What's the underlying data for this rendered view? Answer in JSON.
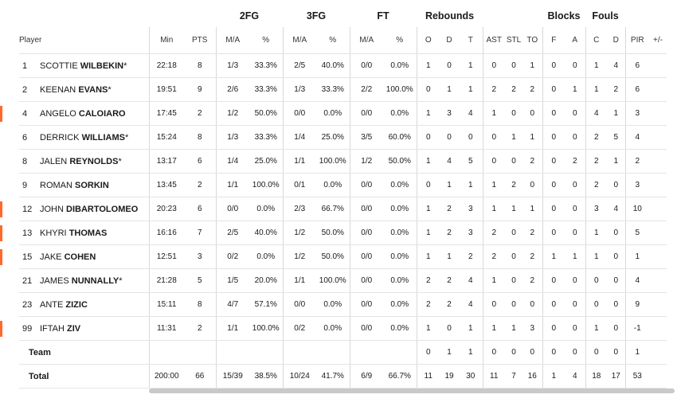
{
  "groups": {
    "fg2": "2FG",
    "fg3": "3FG",
    "ft": "FT",
    "rebounds": "Rebounds",
    "blocks": "Blocks",
    "fouls": "Fouls"
  },
  "columns": {
    "player": "Player",
    "min": "Min",
    "pts": "PTS",
    "fg2_ma": "M/A",
    "fg2_pct": "%",
    "fg3_ma": "M/A",
    "fg3_pct": "%",
    "ft_ma": "M/A",
    "ft_pct": "%",
    "reb_o": "O",
    "reb_d": "D",
    "reb_t": "T",
    "ast": "AST",
    "stl": "STL",
    "to": "TO",
    "blk_f": "F",
    "blk_a": "A",
    "foul_c": "C",
    "foul_d": "D",
    "pir": "PIR",
    "pm": "+/-"
  },
  "accent_color": "#ff6a2b",
  "players": [
    {
      "num": "1",
      "first": "SCOTTIE",
      "last": "WILBEKIN",
      "starter": "*",
      "highlight": false,
      "min": "22:18",
      "pts": "8",
      "fg2_ma": "1/3",
      "fg2_pct": "33.3%",
      "fg3_ma": "2/5",
      "fg3_pct": "40.0%",
      "ft_ma": "0/0",
      "ft_pct": "0.0%",
      "o": "1",
      "d": "0",
      "t": "1",
      "ast": "0",
      "stl": "0",
      "to": "1",
      "bf": "0",
      "ba": "0",
      "fc": "1",
      "fd": "4",
      "pir": "6",
      "pm": ""
    },
    {
      "num": "2",
      "first": "KEENAN",
      "last": "EVANS",
      "starter": "*",
      "highlight": false,
      "min": "19:51",
      "pts": "9",
      "fg2_ma": "2/6",
      "fg2_pct": "33.3%",
      "fg3_ma": "1/3",
      "fg3_pct": "33.3%",
      "ft_ma": "2/2",
      "ft_pct": "100.0%",
      "o": "0",
      "d": "1",
      "t": "1",
      "ast": "2",
      "stl": "2",
      "to": "2",
      "bf": "0",
      "ba": "1",
      "fc": "1",
      "fd": "2",
      "pir": "6",
      "pm": ""
    },
    {
      "num": "4",
      "first": "ANGELO",
      "last": "CALOIARO",
      "starter": "",
      "highlight": true,
      "min": "17:45",
      "pts": "2",
      "fg2_ma": "1/2",
      "fg2_pct": "50.0%",
      "fg3_ma": "0/0",
      "fg3_pct": "0.0%",
      "ft_ma": "0/0",
      "ft_pct": "0.0%",
      "o": "1",
      "d": "3",
      "t": "4",
      "ast": "1",
      "stl": "0",
      "to": "0",
      "bf": "0",
      "ba": "0",
      "fc": "4",
      "fd": "1",
      "pir": "3",
      "pm": ""
    },
    {
      "num": "6",
      "first": "DERRICK",
      "last": "WILLIAMS",
      "starter": "*",
      "highlight": false,
      "min": "15:24",
      "pts": "8",
      "fg2_ma": "1/3",
      "fg2_pct": "33.3%",
      "fg3_ma": "1/4",
      "fg3_pct": "25.0%",
      "ft_ma": "3/5",
      "ft_pct": "60.0%",
      "o": "0",
      "d": "0",
      "t": "0",
      "ast": "0",
      "stl": "1",
      "to": "1",
      "bf": "0",
      "ba": "0",
      "fc": "2",
      "fd": "5",
      "pir": "4",
      "pm": ""
    },
    {
      "num": "8",
      "first": "JALEN",
      "last": "REYNOLDS",
      "starter": "*",
      "highlight": false,
      "min": "13:17",
      "pts": "6",
      "fg2_ma": "1/4",
      "fg2_pct": "25.0%",
      "fg3_ma": "1/1",
      "fg3_pct": "100.0%",
      "ft_ma": "1/2",
      "ft_pct": "50.0%",
      "o": "1",
      "d": "4",
      "t": "5",
      "ast": "0",
      "stl": "0",
      "to": "2",
      "bf": "0",
      "ba": "2",
      "fc": "2",
      "fd": "1",
      "pir": "2",
      "pm": ""
    },
    {
      "num": "9",
      "first": "ROMAN",
      "last": "SORKIN",
      "starter": "",
      "highlight": false,
      "min": "13:45",
      "pts": "2",
      "fg2_ma": "1/1",
      "fg2_pct": "100.0%",
      "fg3_ma": "0/1",
      "fg3_pct": "0.0%",
      "ft_ma": "0/0",
      "ft_pct": "0.0%",
      "o": "0",
      "d": "1",
      "t": "1",
      "ast": "1",
      "stl": "2",
      "to": "0",
      "bf": "0",
      "ba": "0",
      "fc": "2",
      "fd": "0",
      "pir": "3",
      "pm": ""
    },
    {
      "num": "12",
      "first": "JOHN",
      "last": "DIBARTOLOMEO",
      "starter": "",
      "highlight": true,
      "min": "20:23",
      "pts": "6",
      "fg2_ma": "0/0",
      "fg2_pct": "0.0%",
      "fg3_ma": "2/3",
      "fg3_pct": "66.7%",
      "ft_ma": "0/0",
      "ft_pct": "0.0%",
      "o": "1",
      "d": "2",
      "t": "3",
      "ast": "1",
      "stl": "1",
      "to": "1",
      "bf": "0",
      "ba": "0",
      "fc": "3",
      "fd": "4",
      "pir": "10",
      "pm": ""
    },
    {
      "num": "13",
      "first": "KHYRI",
      "last": "THOMAS",
      "starter": "",
      "highlight": true,
      "min": "16:16",
      "pts": "7",
      "fg2_ma": "2/5",
      "fg2_pct": "40.0%",
      "fg3_ma": "1/2",
      "fg3_pct": "50.0%",
      "ft_ma": "0/0",
      "ft_pct": "0.0%",
      "o": "1",
      "d": "2",
      "t": "3",
      "ast": "2",
      "stl": "0",
      "to": "2",
      "bf": "0",
      "ba": "0",
      "fc": "1",
      "fd": "0",
      "pir": "5",
      "pm": ""
    },
    {
      "num": "15",
      "first": "JAKE",
      "last": "COHEN",
      "starter": "",
      "highlight": true,
      "min": "12:51",
      "pts": "3",
      "fg2_ma": "0/2",
      "fg2_pct": "0.0%",
      "fg3_ma": "1/2",
      "fg3_pct": "50.0%",
      "ft_ma": "0/0",
      "ft_pct": "0.0%",
      "o": "1",
      "d": "1",
      "t": "2",
      "ast": "2",
      "stl": "0",
      "to": "2",
      "bf": "1",
      "ba": "1",
      "fc": "1",
      "fd": "0",
      "pir": "1",
      "pm": ""
    },
    {
      "num": "21",
      "first": "JAMES",
      "last": "NUNNALLY",
      "starter": "*",
      "highlight": false,
      "min": "21:28",
      "pts": "5",
      "fg2_ma": "1/5",
      "fg2_pct": "20.0%",
      "fg3_ma": "1/1",
      "fg3_pct": "100.0%",
      "ft_ma": "0/0",
      "ft_pct": "0.0%",
      "o": "2",
      "d": "2",
      "t": "4",
      "ast": "1",
      "stl": "0",
      "to": "2",
      "bf": "0",
      "ba": "0",
      "fc": "0",
      "fd": "0",
      "pir": "4",
      "pm": ""
    },
    {
      "num": "23",
      "first": "ANTE",
      "last": "ZIZIC",
      "starter": "",
      "highlight": false,
      "min": "15:11",
      "pts": "8",
      "fg2_ma": "4/7",
      "fg2_pct": "57.1%",
      "fg3_ma": "0/0",
      "fg3_pct": "0.0%",
      "ft_ma": "0/0",
      "ft_pct": "0.0%",
      "o": "2",
      "d": "2",
      "t": "4",
      "ast": "0",
      "stl": "0",
      "to": "0",
      "bf": "0",
      "ba": "0",
      "fc": "0",
      "fd": "0",
      "pir": "9",
      "pm": ""
    },
    {
      "num": "99",
      "first": "IFTAH",
      "last": "ZIV",
      "starter": "",
      "highlight": true,
      "min": "11:31",
      "pts": "2",
      "fg2_ma": "1/1",
      "fg2_pct": "100.0%",
      "fg3_ma": "0/2",
      "fg3_pct": "0.0%",
      "ft_ma": "0/0",
      "ft_pct": "0.0%",
      "o": "1",
      "d": "0",
      "t": "1",
      "ast": "1",
      "stl": "1",
      "to": "3",
      "bf": "0",
      "ba": "0",
      "fc": "1",
      "fd": "0",
      "pir": "-1",
      "pm": ""
    }
  ],
  "team": {
    "label": "Team",
    "min": "",
    "pts": "",
    "fg2_ma": "",
    "fg2_pct": "",
    "fg3_ma": "",
    "fg3_pct": "",
    "ft_ma": "",
    "ft_pct": "",
    "o": "0",
    "d": "1",
    "t": "1",
    "ast": "0",
    "stl": "0",
    "to": "0",
    "bf": "0",
    "ba": "0",
    "fc": "0",
    "fd": "0",
    "pir": "1",
    "pm": ""
  },
  "total": {
    "label": "Total",
    "min": "200:00",
    "pts": "66",
    "fg2_ma": "15/39",
    "fg2_pct": "38.5%",
    "fg3_ma": "10/24",
    "fg3_pct": "41.7%",
    "ft_ma": "6/9",
    "ft_pct": "66.7%",
    "o": "11",
    "d": "19",
    "t": "30",
    "ast": "11",
    "stl": "7",
    "to": "16",
    "bf": "1",
    "ba": "4",
    "fc": "18",
    "fd": "17",
    "pir": "53",
    "pm": ""
  }
}
